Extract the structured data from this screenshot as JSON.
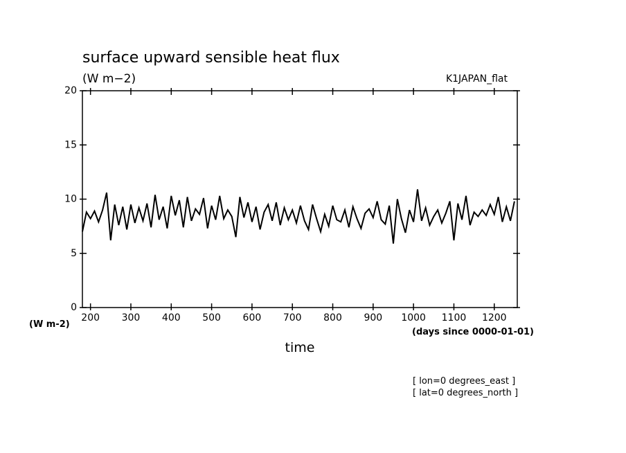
{
  "chart_data": {
    "type": "line",
    "title": "surface upward sensible heat flux",
    "subtitle": "(W m−2)",
    "dataset_label": "K1JAPAN_flat",
    "y_unit_label": "(W m-2)",
    "x_unit_label": "(days since 0000-01-01)",
    "x_label": "time",
    "annotations": [
      "[ lon=0 degrees_east ]",
      "[ lat=0 degrees_north ]"
    ],
    "color": "#000000",
    "x": [
      180,
      190,
      200,
      210,
      220,
      230,
      240,
      250,
      260,
      270,
      280,
      290,
      300,
      310,
      320,
      330,
      340,
      350,
      360,
      370,
      380,
      390,
      400,
      410,
      420,
      430,
      440,
      450,
      460,
      470,
      480,
      490,
      500,
      510,
      520,
      530,
      540,
      550,
      560,
      570,
      580,
      590,
      600,
      610,
      620,
      630,
      640,
      650,
      660,
      670,
      680,
      690,
      700,
      710,
      720,
      730,
      740,
      750,
      760,
      770,
      780,
      790,
      800,
      810,
      820,
      830,
      840,
      850,
      860,
      870,
      880,
      890,
      900,
      910,
      920,
      930,
      940,
      950,
      960,
      970,
      980,
      990,
      1000,
      1010,
      1020,
      1030,
      1040,
      1050,
      1060,
      1070,
      1080,
      1090,
      1100,
      1110,
      1120,
      1130,
      1140,
      1150,
      1160,
      1170,
      1180,
      1190,
      1200,
      1210,
      1220,
      1230,
      1240,
      1250
    ],
    "values": [
      7.0,
      8.8,
      8.2,
      8.9,
      7.9,
      9.0,
      10.6,
      6.2,
      9.5,
      7.6,
      9.3,
      7.2,
      9.5,
      7.8,
      9.2,
      8.0,
      9.6,
      7.4,
      10.4,
      8.1,
      9.3,
      7.3,
      10.3,
      8.5,
      9.9,
      7.4,
      10.2,
      8.0,
      9.1,
      8.6,
      10.1,
      7.3,
      9.4,
      8.1,
      10.3,
      8.2,
      9.0,
      8.4,
      6.5,
      10.2,
      8.3,
      9.7,
      7.9,
      9.3,
      7.2,
      8.8,
      9.5,
      8.0,
      9.7,
      7.6,
      9.2,
      8.1,
      9.0,
      7.8,
      9.4,
      8.0,
      7.2,
      9.5,
      8.2,
      7.0,
      8.6,
      7.5,
      9.4,
      8.1,
      7.9,
      9.0,
      7.4,
      9.3,
      8.2,
      7.3,
      8.7,
      9.1,
      8.3,
      9.8,
      8.1,
      7.7,
      9.4,
      5.9,
      10.0,
      8.2,
      6.9,
      9.0,
      7.9,
      10.9,
      8.0,
      9.2,
      7.6,
      8.4,
      9.0,
      7.8,
      8.7,
      9.8,
      6.2,
      9.6,
      8.1,
      10.3,
      7.6,
      8.8,
      8.4,
      9.0,
      8.5,
      9.5,
      8.6,
      10.2,
      7.9,
      9.3,
      8.0,
      9.8
    ],
    "xlim": [
      180,
      1257
    ],
    "ylim": [
      0,
      20
    ],
    "xticks": [
      200,
      300,
      400,
      500,
      600,
      700,
      800,
      900,
      1000,
      1100,
      1200
    ],
    "yticks": [
      0,
      5,
      10,
      15,
      20
    ]
  }
}
